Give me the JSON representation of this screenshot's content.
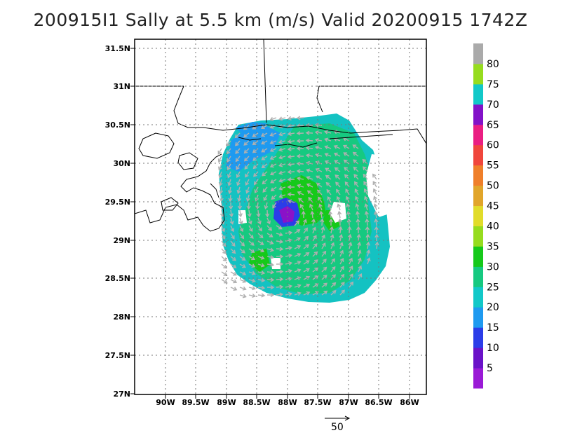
{
  "title": "200915I1 Sally at 5.5 km (m/s) Valid 20200915 1742Z",
  "map": {
    "lat_labels": [
      "31.5N",
      "31N",
      "30.5N",
      "30N",
      "29.5N",
      "29N",
      "28.5N",
      "28N",
      "27.5N",
      "27N"
    ],
    "lon_labels": [
      "90W",
      "89.5W",
      "89W",
      "88.5W",
      "88W",
      "87.5W",
      "87W",
      "86.5W",
      "86W"
    ],
    "storm_center": {
      "lat": 29.35,
      "lon": -88.15
    }
  },
  "colorbar": {
    "labels": [
      "5",
      "10",
      "15",
      "20",
      "25",
      "30",
      "35",
      "40",
      "45",
      "50",
      "55",
      "60",
      "65",
      "70",
      "75",
      "80"
    ],
    "colors": [
      "#9a1ad6",
      "#6a12c8",
      "#2b3de8",
      "#1e9af0",
      "#12c8c8",
      "#16c980",
      "#16c91a",
      "#96dc1e",
      "#e1dc2a",
      "#e1a52a",
      "#ef7f2a",
      "#f0463c",
      "#ea1e82",
      "#8212c8",
      "#12c8c8",
      "#96dc1e",
      "#aaaaaa"
    ]
  },
  "reference_vector": {
    "label": "50"
  }
}
